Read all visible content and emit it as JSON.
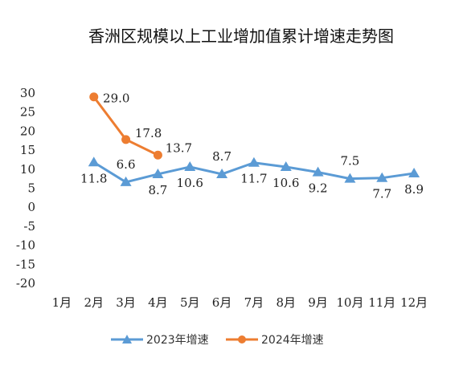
{
  "chart_data": {
    "type": "line",
    "title": "香洲区规模以上工业增加值累计增速走势图",
    "xlabel": "",
    "ylabel": "",
    "ylim": [
      -20,
      30
    ],
    "yticks": [
      30,
      25,
      20,
      15,
      10,
      5,
      0,
      -5,
      -10,
      -15,
      -20
    ],
    "categories": [
      "1月",
      "2月",
      "3月",
      "4月",
      "5月",
      "6月",
      "7月",
      "8月",
      "9月",
      "10月",
      "11月",
      "12月"
    ],
    "grid": false,
    "legend_position": "bottom",
    "series": [
      {
        "name": "2023年增速",
        "color": "#5b9bd5",
        "marker": "triangle",
        "values": [
          null,
          11.8,
          6.6,
          8.7,
          10.6,
          8.7,
          11.7,
          10.6,
          9.2,
          7.5,
          7.7,
          8.9
        ],
        "labels": [
          "",
          "11.8",
          "6.6",
          "8.7",
          "10.6",
          "8.7",
          "11.7",
          "10.6",
          "9.2",
          "7.5",
          "7.7",
          "8.9"
        ]
      },
      {
        "name": "2024年增速",
        "color": "#ed7d31",
        "marker": "circle",
        "values": [
          null,
          29.0,
          17.8,
          13.7,
          null,
          null,
          null,
          null,
          null,
          null,
          null,
          null
        ],
        "labels": [
          "",
          "29.0",
          "17.8",
          "13.7",
          "",
          "",
          "",
          "",
          "",
          "",
          "",
          ""
        ]
      }
    ]
  }
}
